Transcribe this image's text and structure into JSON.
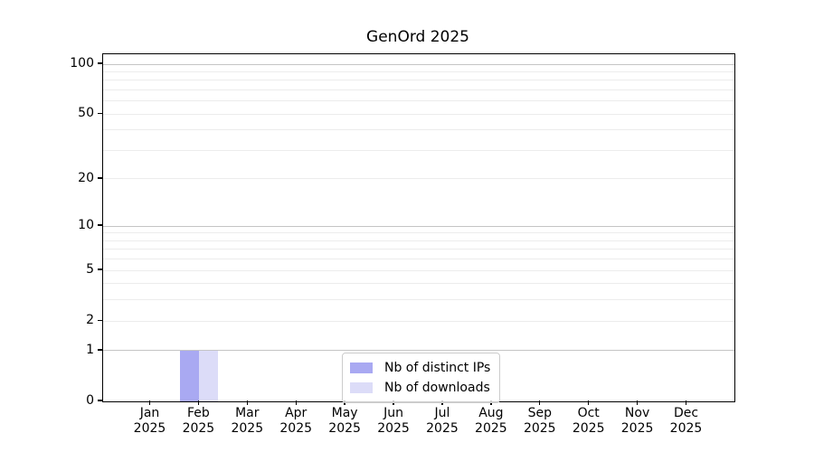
{
  "title": "GenOrd 2025",
  "colors": {
    "bar_distinct_ips": "#a9a9f2",
    "bar_downloads": "#dcdcf8",
    "grid_major": "#c5c5c5",
    "grid_minor": "#ececec",
    "axis": "#000000",
    "legend_border": "#cccccc"
  },
  "legend": {
    "position": "lower center",
    "items": [
      {
        "label": "Nb of distinct IPs"
      },
      {
        "label": "Nb of downloads"
      }
    ]
  },
  "chart_data": {
    "type": "bar",
    "title": "GenOrd 2025",
    "categories": [
      {
        "month": "Jan",
        "year": "2025"
      },
      {
        "month": "Feb",
        "year": "2025"
      },
      {
        "month": "Mar",
        "year": "2025"
      },
      {
        "month": "Apr",
        "year": "2025"
      },
      {
        "month": "May",
        "year": "2025"
      },
      {
        "month": "Jun",
        "year": "2025"
      },
      {
        "month": "Jul",
        "year": "2025"
      },
      {
        "month": "Aug",
        "year": "2025"
      },
      {
        "month": "Sep",
        "year": "2025"
      },
      {
        "month": "Oct",
        "year": "2025"
      },
      {
        "month": "Nov",
        "year": "2025"
      },
      {
        "month": "Dec",
        "year": "2025"
      }
    ],
    "series": [
      {
        "name": "Nb of distinct IPs",
        "color": "#a9a9f2",
        "values": [
          0,
          1,
          0,
          0,
          0,
          0,
          0,
          0,
          0,
          0,
          0,
          0
        ]
      },
      {
        "name": "Nb of downloads",
        "color": "#dcdcf8",
        "values": [
          0,
          1,
          0,
          0,
          0,
          0,
          0,
          0,
          0,
          0,
          0,
          0
        ]
      }
    ],
    "xlabel": "",
    "ylabel": "",
    "y_scale": "log10(1+v)",
    "ylim": [
      0,
      100
    ],
    "y_ticks": [
      0,
      1,
      2,
      5,
      10,
      20,
      50,
      100
    ],
    "y_tick_labels": [
      "0",
      "1",
      "2",
      "5",
      "10",
      "20",
      "50",
      "100"
    ],
    "y_major_gridlines": [
      1,
      10,
      100
    ],
    "y_minor_gridlines": [
      2,
      3,
      4,
      5,
      6,
      7,
      8,
      9,
      20,
      30,
      40,
      50,
      60,
      70,
      80,
      90
    ],
    "grid": "horizontal"
  }
}
